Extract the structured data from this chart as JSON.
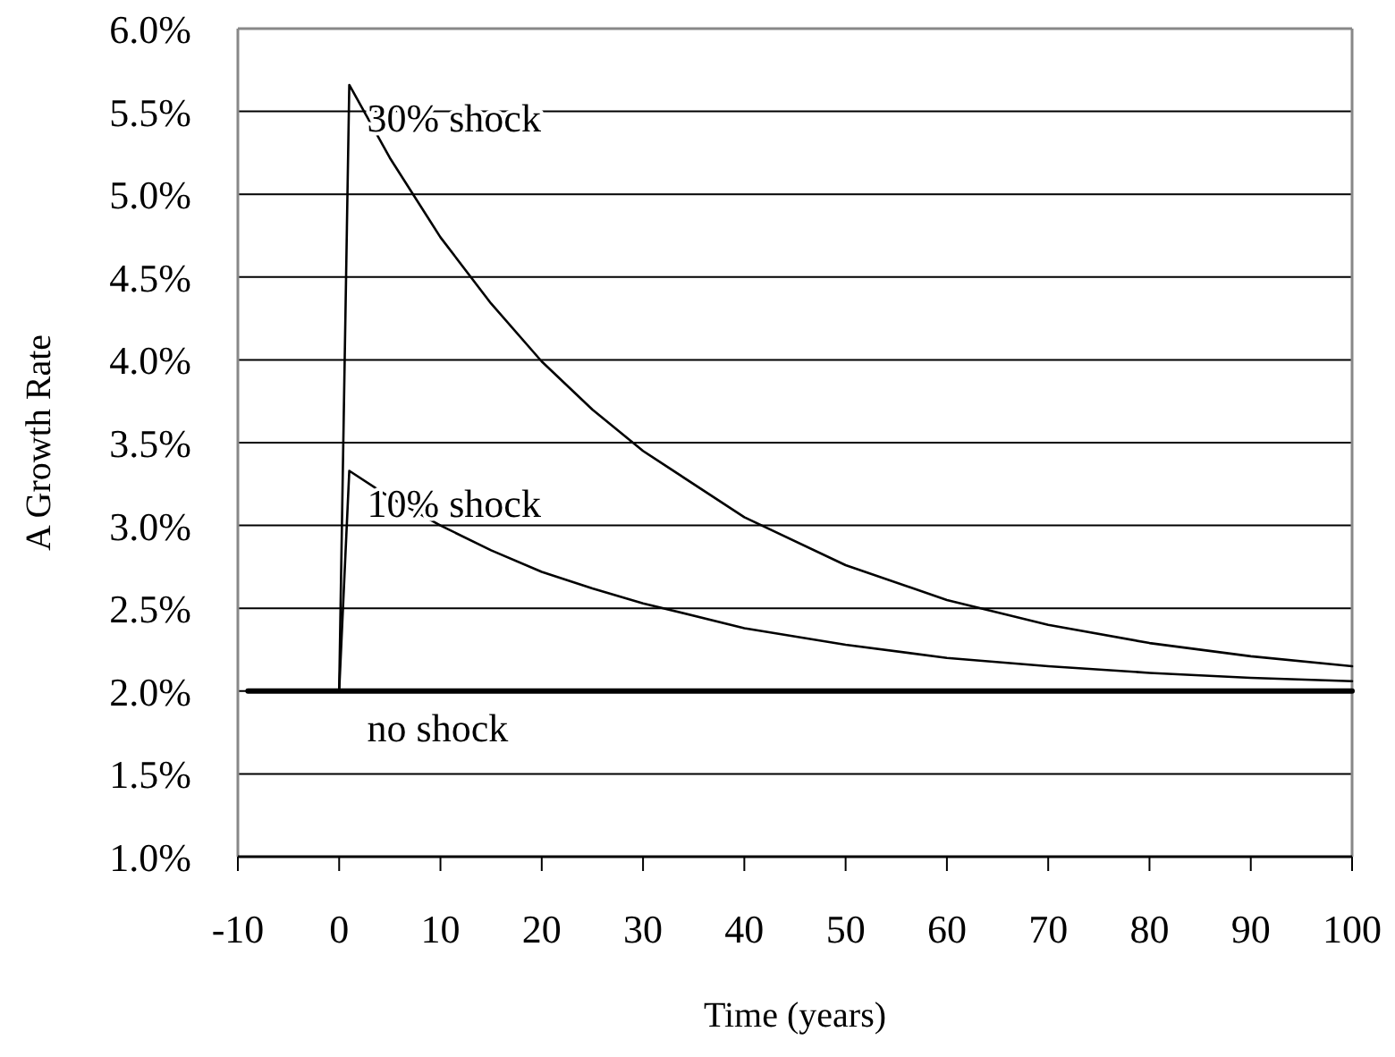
{
  "chart_data": {
    "type": "line",
    "xlabel": "Time (years)",
    "ylabel": "A Growth Rate",
    "xlim": [
      -10,
      100
    ],
    "xticks": [
      -10,
      0,
      10,
      20,
      30,
      40,
      50,
      60,
      70,
      80,
      90,
      100
    ],
    "ylim": [
      1.0,
      6.0
    ],
    "yticks": [
      {
        "value": 1.0,
        "label": "1.0%"
      },
      {
        "value": 1.5,
        "label": "1.5%"
      },
      {
        "value": 2.0,
        "label": "2.0%"
      },
      {
        "value": 2.5,
        "label": "2.5%"
      },
      {
        "value": 3.0,
        "label": "3.0%"
      },
      {
        "value": 3.5,
        "label": "3.5%"
      },
      {
        "value": 4.0,
        "label": "4.0%"
      },
      {
        "value": 4.5,
        "label": "4.5%"
      },
      {
        "value": 5.0,
        "label": "5.0%"
      },
      {
        "value": 5.5,
        "label": "5.5%"
      },
      {
        "value": 6.0,
        "label": "6.0%"
      }
    ],
    "grid": "y",
    "marker": "none",
    "line_style": "solid",
    "series": [
      {
        "name": "30% shock",
        "color": "#000000",
        "x": [
          0,
          1,
          5,
          10,
          15,
          20,
          25,
          30,
          40,
          50,
          60,
          70,
          80,
          90,
          100
        ],
        "values": [
          2.0,
          5.66,
          5.22,
          4.74,
          4.34,
          3.99,
          3.7,
          3.45,
          3.05,
          2.76,
          2.55,
          2.4,
          2.29,
          2.21,
          2.15
        ]
      },
      {
        "name": "10% shock",
        "color": "#000000",
        "x": [
          0,
          1,
          5,
          10,
          15,
          20,
          25,
          30,
          40,
          50,
          60,
          70,
          80,
          90,
          100
        ],
        "values": [
          2.0,
          3.33,
          3.17,
          3.0,
          2.85,
          2.72,
          2.62,
          2.53,
          2.38,
          2.28,
          2.2,
          2.15,
          2.11,
          2.08,
          2.06
        ]
      },
      {
        "name": "no shock",
        "color": "#000000",
        "x": [
          -9,
          100
        ],
        "values": [
          2.0,
          2.0
        ]
      }
    ]
  }
}
